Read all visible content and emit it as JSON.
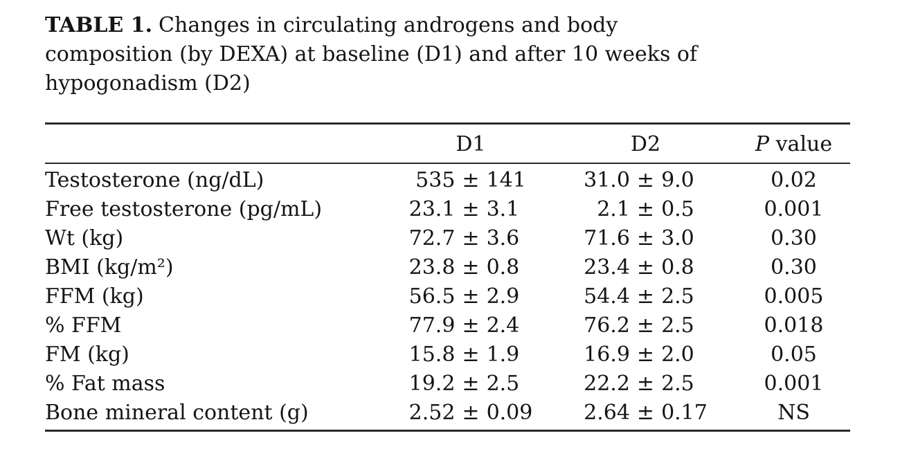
{
  "page": {
    "background": "#ffffff",
    "text_color": "#141414",
    "rule_color": "#2a2a2a"
  },
  "title": {
    "tag": "TABLE 1.",
    "line1": "Changes in circulating androgens and body",
    "line2": "composition (by DEXA) at baseline (D1) and after 10 weeks of",
    "line3": "hypogonadism (D2)"
  },
  "table": {
    "plus_minus": "±",
    "header": {
      "label": "",
      "d1": "D1",
      "d2": "D2",
      "p_prefix": "P",
      "p_suffix": "value"
    },
    "rows": [
      {
        "label": "Testosterone (ng/dL)",
        "d1_mean": "535",
        "d1_sd": "141",
        "d2_mean": "31.0",
        "d2_sd": "9.0",
        "p": "0.02"
      },
      {
        "label": "Free testosterone (pg/mL)",
        "d1_mean": "23.1",
        "d1_sd": "3.1",
        "d2_mean": "2.1",
        "d2_sd": "0.5",
        "p": "0.001"
      },
      {
        "label": "Wt (kg)",
        "d1_mean": "72.7",
        "d1_sd": "3.6",
        "d2_mean": "71.6",
        "d2_sd": "3.0",
        "p": "0.30"
      },
      {
        "label": "BMI (kg/m²)",
        "d1_mean": "23.8",
        "d1_sd": "0.8",
        "d2_mean": "23.4",
        "d2_sd": "0.8",
        "p": "0.30"
      },
      {
        "label": "FFM (kg)",
        "d1_mean": "56.5",
        "d1_sd": "2.9",
        "d2_mean": "54.4",
        "d2_sd": "2.5",
        "p": "0.005"
      },
      {
        "label": "% FFM",
        "d1_mean": "77.9",
        "d1_sd": "2.4",
        "d2_mean": "76.2",
        "d2_sd": "2.5",
        "p": "0.018"
      },
      {
        "label": "FM (kg)",
        "d1_mean": "15.8",
        "d1_sd": "1.9",
        "d2_mean": "16.9",
        "d2_sd": "2.0",
        "p": "0.05"
      },
      {
        "label": "% Fat mass",
        "d1_mean": "19.2",
        "d1_sd": "2.5",
        "d2_mean": "22.2",
        "d2_sd": "2.5",
        "p": "0.001"
      },
      {
        "label": "Bone mineral content (g)",
        "d1_mean": "2.52",
        "d1_sd": "0.09",
        "d2_mean": "2.64",
        "d2_sd": "0.17",
        "p": "NS"
      }
    ]
  }
}
